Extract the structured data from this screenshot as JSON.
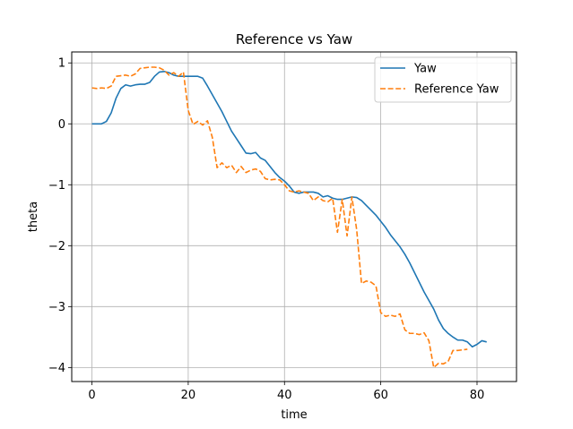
{
  "chart_data": {
    "type": "line",
    "title": "Reference vs Yaw",
    "xlabel": "time",
    "ylabel": "theta",
    "xlim": [
      -4.2,
      88.2
    ],
    "ylim": [
      -4.23,
      1.18
    ],
    "xticks": [
      0,
      20,
      40,
      60,
      80
    ],
    "yticks": [
      1,
      0,
      -1,
      -2,
      -3,
      -4
    ],
    "grid": true,
    "legend_position": "top-right",
    "series": [
      {
        "name": "Yaw",
        "color": "#1f77b4",
        "style": "solid",
        "points": [
          [
            0,
            0
          ],
          [
            1,
            0
          ],
          [
            2,
            0
          ],
          [
            3,
            0.04
          ],
          [
            4,
            0.18
          ],
          [
            5,
            0.42
          ],
          [
            6,
            0.58
          ],
          [
            7,
            0.64
          ],
          [
            8,
            0.62
          ],
          [
            9,
            0.64
          ],
          [
            10,
            0.65
          ],
          [
            11,
            0.65
          ],
          [
            12,
            0.68
          ],
          [
            13,
            0.78
          ],
          [
            14,
            0.85
          ],
          [
            15,
            0.86
          ],
          [
            16,
            0.84
          ],
          [
            17,
            0.8
          ],
          [
            18,
            0.78
          ],
          [
            19,
            0.78
          ],
          [
            20,
            0.78
          ],
          [
            21,
            0.78
          ],
          [
            22,
            0.78
          ],
          [
            23,
            0.75
          ],
          [
            24,
            0.62
          ],
          [
            25,
            0.48
          ],
          [
            26,
            0.34
          ],
          [
            27,
            0.2
          ],
          [
            28,
            0.04
          ],
          [
            29,
            -0.12
          ],
          [
            30,
            -0.24
          ],
          [
            31,
            -0.36
          ],
          [
            32,
            -0.48
          ],
          [
            33,
            -0.49
          ],
          [
            34,
            -0.47
          ],
          [
            35,
            -0.56
          ],
          [
            36,
            -0.6
          ],
          [
            37,
            -0.7
          ],
          [
            38,
            -0.8
          ],
          [
            39,
            -0.88
          ],
          [
            40,
            -0.94
          ],
          [
            41,
            -1.02
          ],
          [
            42,
            -1.12
          ],
          [
            43,
            -1.14
          ],
          [
            44,
            -1.12
          ],
          [
            45,
            -1.12
          ],
          [
            46,
            -1.12
          ],
          [
            47,
            -1.14
          ],
          [
            48,
            -1.2
          ],
          [
            49,
            -1.18
          ],
          [
            50,
            -1.22
          ],
          [
            51,
            -1.24
          ],
          [
            52,
            -1.24
          ],
          [
            53,
            -1.22
          ],
          [
            54,
            -1.2
          ],
          [
            55,
            -1.21
          ],
          [
            56,
            -1.26
          ],
          [
            57,
            -1.34
          ],
          [
            58,
            -1.42
          ],
          [
            59,
            -1.5
          ],
          [
            60,
            -1.6
          ],
          [
            61,
            -1.7
          ],
          [
            62,
            -1.82
          ],
          [
            63,
            -1.92
          ],
          [
            64,
            -2.02
          ],
          [
            65,
            -2.14
          ],
          [
            66,
            -2.28
          ],
          [
            67,
            -2.44
          ],
          [
            68,
            -2.6
          ],
          [
            69,
            -2.76
          ],
          [
            70,
            -2.9
          ],
          [
            71,
            -3.04
          ],
          [
            72,
            -3.22
          ],
          [
            73,
            -3.36
          ],
          [
            74,
            -3.44
          ],
          [
            75,
            -3.5
          ],
          [
            76,
            -3.55
          ],
          [
            77,
            -3.55
          ],
          [
            78,
            -3.58
          ],
          [
            79,
            -3.66
          ],
          [
            80,
            -3.62
          ],
          [
            81,
            -3.56
          ],
          [
            82,
            -3.58
          ]
        ]
      },
      {
        "name": "Reference Yaw",
        "color": "#ff7f0e",
        "style": "dashed",
        "points": [
          [
            0,
            0.59
          ],
          [
            1,
            0.58
          ],
          [
            2,
            0.59
          ],
          [
            3,
            0.58
          ],
          [
            4,
            0.62
          ],
          [
            5,
            0.78
          ],
          [
            6,
            0.79
          ],
          [
            7,
            0.8
          ],
          [
            8,
            0.78
          ],
          [
            9,
            0.82
          ],
          [
            10,
            0.91
          ],
          [
            11,
            0.92
          ],
          [
            12,
            0.93
          ],
          [
            13,
            0.93
          ],
          [
            14,
            0.92
          ],
          [
            15,
            0.88
          ],
          [
            16,
            0.8
          ],
          [
            17,
            0.84
          ],
          [
            18,
            0.78
          ],
          [
            19,
            0.85
          ],
          [
            20,
            0.22
          ],
          [
            21,
            -0.01
          ],
          [
            22,
            0.04
          ],
          [
            23,
            -0.02
          ],
          [
            24,
            0.05
          ],
          [
            25,
            -0.22
          ],
          [
            26,
            -0.72
          ],
          [
            27,
            -0.64
          ],
          [
            28,
            -0.72
          ],
          [
            29,
            -0.68
          ],
          [
            30,
            -0.8
          ],
          [
            31,
            -0.7
          ],
          [
            32,
            -0.8
          ],
          [
            33,
            -0.76
          ],
          [
            34,
            -0.74
          ],
          [
            35,
            -0.78
          ],
          [
            36,
            -0.9
          ],
          [
            37,
            -0.92
          ],
          [
            38,
            -0.91
          ],
          [
            39,
            -0.92
          ],
          [
            40,
            -1.0
          ],
          [
            41,
            -1.1
          ],
          [
            42,
            -1.12
          ],
          [
            43,
            -1.1
          ],
          [
            44,
            -1.12
          ],
          [
            45,
            -1.14
          ],
          [
            46,
            -1.26
          ],
          [
            47,
            -1.2
          ],
          [
            48,
            -1.26
          ],
          [
            49,
            -1.28
          ],
          [
            50,
            -1.22
          ],
          [
            51,
            -1.78
          ],
          [
            52,
            -1.24
          ],
          [
            53,
            -1.84
          ],
          [
            54,
            -1.2
          ],
          [
            55,
            -1.74
          ],
          [
            56,
            -2.62
          ],
          [
            57,
            -2.58
          ],
          [
            58,
            -2.6
          ],
          [
            59,
            -2.66
          ],
          [
            60,
            -3.1
          ],
          [
            61,
            -3.16
          ],
          [
            62,
            -3.14
          ],
          [
            63,
            -3.16
          ],
          [
            64,
            -3.12
          ],
          [
            65,
            -3.38
          ],
          [
            66,
            -3.44
          ],
          [
            67,
            -3.44
          ],
          [
            68,
            -3.46
          ],
          [
            69,
            -3.43
          ],
          [
            70,
            -3.56
          ],
          [
            71,
            -4.0
          ],
          [
            72,
            -3.93
          ],
          [
            73,
            -3.94
          ],
          [
            74,
            -3.9
          ],
          [
            75,
            -3.72
          ],
          [
            76,
            -3.72
          ],
          [
            77,
            -3.71
          ],
          [
            78,
            -3.7
          ]
        ]
      }
    ]
  }
}
